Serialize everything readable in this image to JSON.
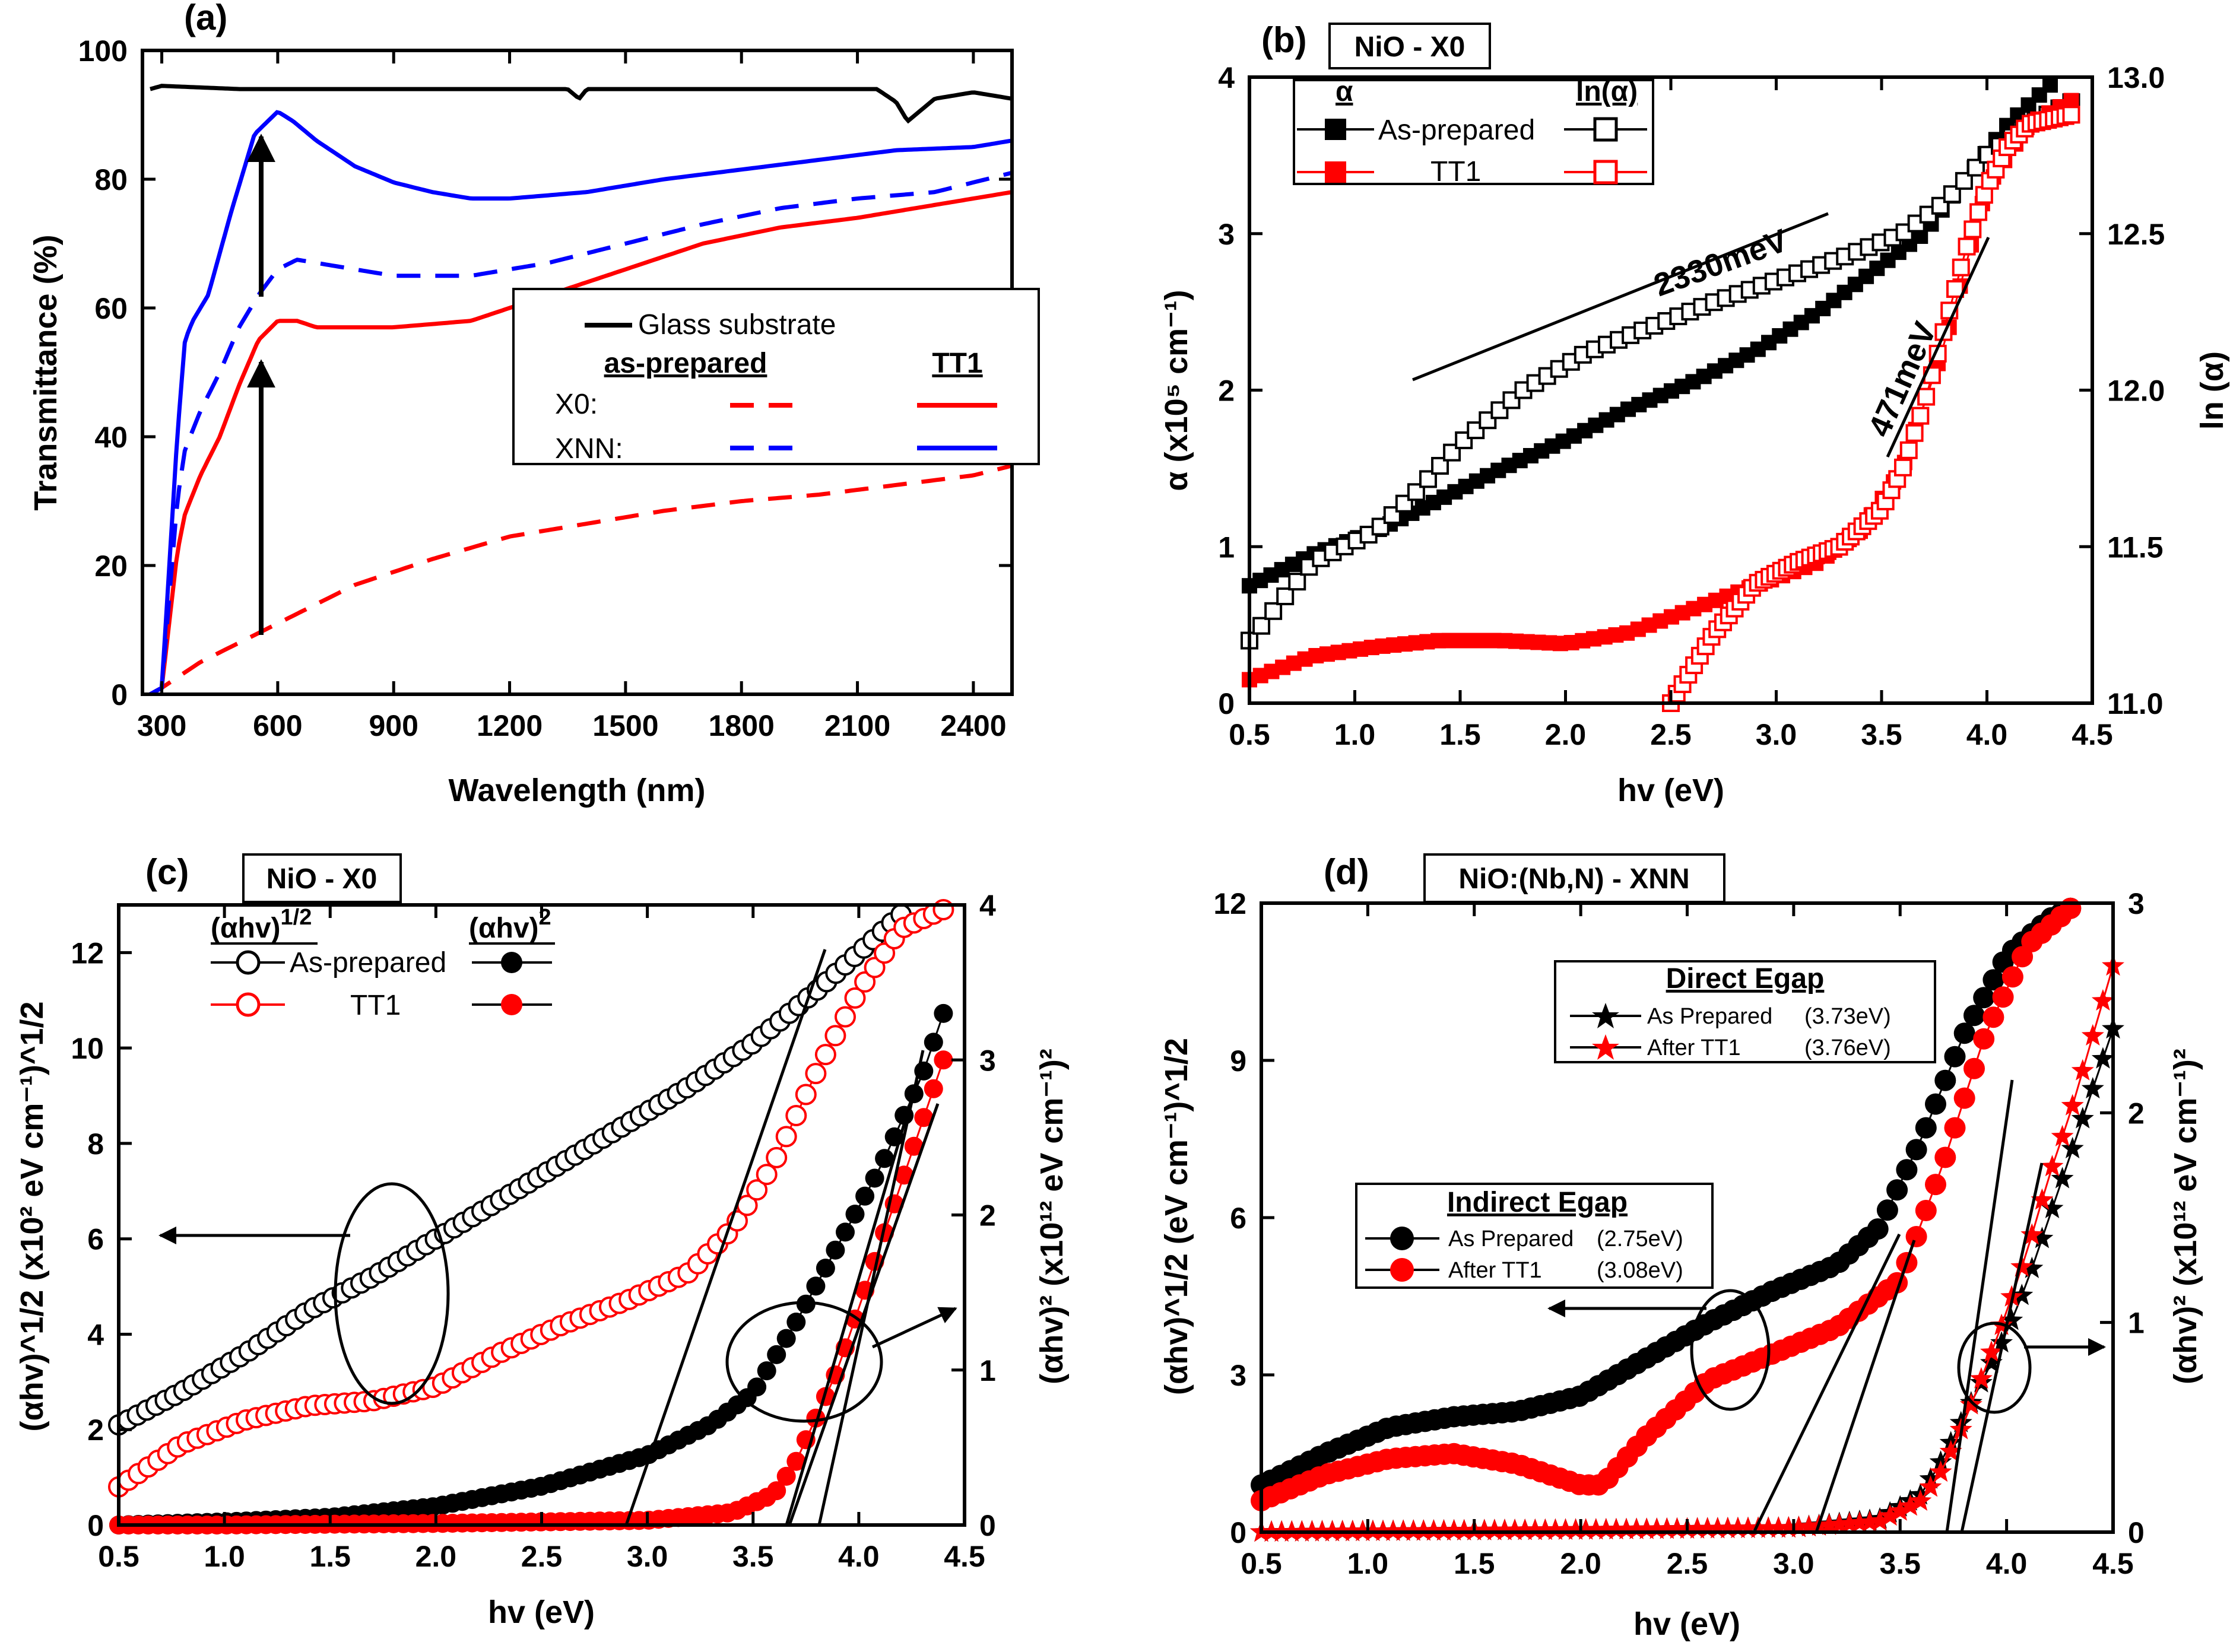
{
  "colors": {
    "black": "#000000",
    "red": "#ff0000",
    "blue": "#0000ff"
  },
  "chart_data": [
    {
      "panel": "(a)",
      "type": "line",
      "xlabel": "Wavelength (nm)",
      "ylabel": "Transmittance  (%)",
      "xlim": [
        250,
        2500
      ],
      "ylim": [
        0,
        100
      ],
      "xticks": [
        "300",
        "600",
        "900",
        "1200",
        "1500",
        "1800",
        "2100",
        "2400"
      ],
      "yticks": [
        "0",
        "20",
        "40",
        "60",
        "80",
        "100"
      ],
      "legend": {
        "glass": "Glass substrate",
        "col_as": "as-prepared",
        "col_tt": "TT1",
        "row_x0": "X0:",
        "row_xnn": "XNN:"
      },
      "series": [
        {
          "name": "Glass substrate",
          "color": "#000000",
          "dash": false,
          "x": [
            270,
            300,
            500,
            1000,
            1350,
            1380,
            1400,
            1500,
            2000,
            2150,
            2200,
            2230,
            2300,
            2400,
            2500
          ],
          "y": [
            94,
            94.5,
            94,
            94,
            94,
            92.5,
            94,
            94,
            94,
            94,
            92,
            89,
            92.5,
            93.5,
            92.5
          ]
        },
        {
          "name": "X0 as-prepared",
          "color": "#ff0000",
          "dash": true,
          "x": [
            270,
            300,
            400,
            600,
            800,
            1000,
            1200,
            1400,
            1600,
            1800,
            2000,
            2200,
            2400,
            2500
          ],
          "y": [
            0,
            1,
            5,
            11,
            17,
            21,
            24.5,
            26.5,
            28.5,
            30,
            31,
            32.5,
            34,
            35.5
          ]
        },
        {
          "name": "X0 TT1",
          "color": "#ff0000",
          "dash": false,
          "x": [
            270,
            300,
            340,
            360,
            400,
            450,
            500,
            550,
            600,
            650,
            700,
            900,
            1100,
            1300,
            1500,
            1700,
            1900,
            2100,
            2300,
            2500
          ],
          "y": [
            0,
            1,
            22,
            28,
            34,
            40,
            48,
            55,
            58,
            58,
            57,
            57,
            58,
            62,
            66,
            70,
            72.5,
            74,
            76,
            78
          ]
        },
        {
          "name": "XNN as-prepared",
          "color": "#0000ff",
          "dash": true,
          "x": [
            270,
            300,
            340,
            360,
            400,
            450,
            500,
            550,
            600,
            650,
            700,
            900,
            1100,
            1300,
            1500,
            1700,
            1900,
            2100,
            2300,
            2500
          ],
          "y": [
            0,
            1,
            30,
            38,
            44,
            50,
            57,
            62,
            66,
            67.5,
            67,
            65,
            65,
            67,
            70,
            73,
            75.5,
            77,
            78,
            81
          ]
        },
        {
          "name": "XNN TT1",
          "color": "#0000ff",
          "dash": false,
          "x": [
            270,
            300,
            340,
            360,
            380,
            420,
            480,
            540,
            600,
            640,
            700,
            800,
            900,
            1000,
            1100,
            1200,
            1400,
            1600,
            1800,
            2000,
            2200,
            2400,
            2500
          ],
          "y": [
            0,
            1,
            40,
            55,
            58,
            62,
            75,
            87,
            90.5,
            89,
            86,
            82,
            79.5,
            78,
            77,
            77,
            78,
            80,
            81.5,
            83,
            84.5,
            85,
            86
          ]
        }
      ],
      "annotations": [
        "arrow 550nm 10%→55%",
        "arrow 550nm 62%→88%"
      ]
    },
    {
      "panel": "(b)",
      "type": "scatter",
      "title": "NiO - X0",
      "xlabel": "hv  (eV)",
      "ylabel": "α (x10⁵ cm⁻¹)",
      "ylabel_right": "ln (α)",
      "xlim": [
        0.5,
        4.5
      ],
      "ylim": [
        0,
        4
      ],
      "ylim_right": [
        11.0,
        13.0
      ],
      "xticks": [
        "0.5",
        "1.0",
        "1.5",
        "2.0",
        "2.5",
        "3.0",
        "3.5",
        "4.0",
        "4.5"
      ],
      "yticks": [
        "0",
        "1",
        "2",
        "3",
        "4"
      ],
      "yticks_right": [
        "11.0",
        "11.5",
        "12.0",
        "12.5",
        "13.0"
      ],
      "legend": {
        "head_alpha": "α",
        "head_ln": "ln(α)",
        "row1": "As-prepared",
        "row2": "TT1"
      },
      "annotations": [
        "2330meV",
        "471meV"
      ],
      "series": [
        {
          "name": "α As-prepared",
          "color": "#000000",
          "filled": true,
          "axis": "left",
          "x": [
            0.5,
            0.8,
            1.1,
            1.4,
            1.7,
            2.0,
            2.3,
            2.6,
            2.9,
            3.2,
            3.5,
            3.7,
            3.9,
            4.1,
            4.3
          ],
          "y": [
            0.75,
            0.95,
            1.1,
            1.3,
            1.5,
            1.68,
            1.88,
            2.05,
            2.25,
            2.5,
            2.8,
            3.0,
            3.35,
            3.7,
            3.95
          ]
        },
        {
          "name": "ln(α) As-prepared",
          "color": "#000000",
          "filled": false,
          "axis": "right",
          "x": [
            0.5,
            0.8,
            1.1,
            1.3,
            1.5,
            1.8,
            2.1,
            2.4,
            2.7,
            3.0,
            3.3,
            3.6,
            3.8,
            4.0,
            4.2,
            4.4
          ],
          "y": [
            11.2,
            11.45,
            11.55,
            11.68,
            11.83,
            12.0,
            12.12,
            12.2,
            12.28,
            12.35,
            12.42,
            12.5,
            12.6,
            12.75,
            12.85,
            12.92
          ]
        },
        {
          "name": "α TT1",
          "color": "#ff0000",
          "filled": true,
          "axis": "left",
          "x": [
            0.5,
            0.8,
            1.1,
            1.4,
            1.7,
            2.0,
            2.3,
            2.6,
            2.9,
            3.2,
            3.4,
            3.6,
            3.7,
            3.8,
            3.9,
            4.0,
            4.2,
            4.4
          ],
          "y": [
            0.15,
            0.3,
            0.36,
            0.4,
            0.4,
            0.38,
            0.45,
            0.6,
            0.75,
            0.9,
            1.1,
            1.5,
            1.9,
            2.3,
            2.8,
            3.3,
            3.7,
            3.85
          ]
        },
        {
          "name": "ln(α) TT1",
          "color": "#ff0000",
          "filled": false,
          "axis": "right",
          "x": [
            2.5,
            2.7,
            2.9,
            3.1,
            3.3,
            3.5,
            3.6,
            3.7,
            3.8,
            3.9,
            4.0,
            4.1,
            4.2,
            4.4
          ],
          "y": [
            11.0,
            11.22,
            11.38,
            11.45,
            11.5,
            11.62,
            11.75,
            11.95,
            12.2,
            12.45,
            12.65,
            12.78,
            12.85,
            12.88
          ]
        }
      ]
    },
    {
      "panel": "(c)",
      "type": "scatter",
      "title": "NiO - X0",
      "xlabel": "hv  (eV)",
      "ylabel": "(αhv)^1/2 (x10² eV cm⁻¹)^1/2",
      "ylabel_right": "(αhv)² (x10¹² eV cm⁻¹)²",
      "xlim": [
        0.5,
        4.5
      ],
      "ylim": [
        0,
        13
      ],
      "ylim_right": [
        0,
        4
      ],
      "xticks": [
        "0.5",
        "1.0",
        "1.5",
        "2.0",
        "2.5",
        "3.0",
        "3.5",
        "4.0",
        "4.5"
      ],
      "yticks": [
        "0",
        "2",
        "4",
        "6",
        "8",
        "10",
        "12"
      ],
      "yticks_right": [
        "0",
        "1",
        "2",
        "3",
        "4"
      ],
      "legend": {
        "head_sqrt": "(αhv)",
        "head_sqrt_sup": "1/2",
        "head_sq": "(αhv)",
        "head_sq_sup": "2",
        "row1": "As-prepared",
        "row2": "TT1"
      },
      "series": [
        {
          "name": "(αhv)^1/2 As-prepared",
          "color": "#000000",
          "filled": false,
          "axis": "left",
          "x": [
            0.5,
            0.8,
            1.1,
            1.4,
            1.7,
            2.0,
            2.3,
            2.6,
            2.9,
            3.2,
            3.5,
            3.8,
            4.0,
            4.2
          ],
          "y": [
            2.1,
            2.8,
            3.6,
            4.5,
            5.2,
            6.0,
            6.8,
            7.6,
            8.4,
            9.2,
            10.1,
            11.2,
            12.0,
            12.8
          ]
        },
        {
          "name": "(αhv)^1/2 TT1",
          "color": "#ff0000",
          "filled": false,
          "axis": "left",
          "x": [
            0.5,
            0.8,
            1.1,
            1.4,
            1.7,
            2.0,
            2.3,
            2.6,
            2.9,
            3.2,
            3.4,
            3.6,
            3.8,
            4.0,
            4.2,
            4.4
          ],
          "y": [
            0.8,
            1.7,
            2.2,
            2.5,
            2.6,
            2.9,
            3.6,
            4.2,
            4.7,
            5.3,
            6.2,
            7.6,
            9.5,
            11.2,
            12.5,
            12.9
          ]
        },
        {
          "name": "(αhv)^2 As-prepared",
          "color": "#000000",
          "filled": true,
          "axis": "right",
          "x": [
            0.5,
            1.0,
            1.5,
            2.0,
            2.5,
            3.0,
            3.3,
            3.5,
            3.7,
            3.9,
            4.1,
            4.3,
            4.4
          ],
          "y": [
            0.0,
            0.02,
            0.05,
            0.12,
            0.25,
            0.45,
            0.65,
            0.85,
            1.3,
            1.8,
            2.3,
            2.9,
            3.3
          ]
        },
        {
          "name": "(αhv)^2 TT1",
          "color": "#ff0000",
          "filled": true,
          "axis": "right",
          "x": [
            0.5,
            1.0,
            2.0,
            3.0,
            3.4,
            3.6,
            3.7,
            3.8,
            3.9,
            4.0,
            4.1,
            4.2,
            4.3,
            4.4
          ],
          "y": [
            0.0,
            0.0,
            0.01,
            0.03,
            0.08,
            0.2,
            0.4,
            0.7,
            1.0,
            1.4,
            1.8,
            2.2,
            2.6,
            3.0
          ]
        }
      ]
    },
    {
      "panel": "(d)",
      "type": "scatter",
      "title": "NiO:(Nb,N) - XNN",
      "xlabel": "hv  (eV)",
      "ylabel": "(αhv)^1/2 (eV cm⁻¹)^1/2",
      "ylabel_right": "(αhv)² (x10¹² eV cm⁻¹)²",
      "xlim": [
        0.5,
        4.5
      ],
      "ylim": [
        0,
        12
      ],
      "ylim_right": [
        0,
        3
      ],
      "xticks": [
        "0.5",
        "1.0",
        "1.5",
        "2.0",
        "2.5",
        "3.0",
        "3.5",
        "4.0",
        "4.5"
      ],
      "yticks": [
        "0",
        "3",
        "6",
        "9",
        "12"
      ],
      "yticks_right": [
        "0",
        "1",
        "2",
        "3"
      ],
      "legend_direct": {
        "title": "Direct Egap",
        "row1": "As Prepared",
        "row1_val": "(3.73eV)",
        "row2": "After TT1",
        "row2_val": "(3.76eV)"
      },
      "legend_indirect": {
        "title": "Indirect Egap",
        "row1": "As Prepared",
        "row1_val": "(2.75eV)",
        "row2": "After TT1",
        "row2_val": "(3.08eV)"
      },
      "series": [
        {
          "name": "Indirect As Prepared",
          "color": "#000000",
          "marker": "circle",
          "axis": "left",
          "x": [
            0.5,
            0.8,
            1.1,
            1.4,
            1.7,
            2.0,
            2.3,
            2.6,
            2.9,
            3.2,
            3.4,
            3.6,
            3.8,
            4.0,
            4.2,
            4.3
          ],
          "y": [
            0.9,
            1.5,
            2.0,
            2.2,
            2.3,
            2.6,
            3.3,
            4.0,
            4.6,
            5.1,
            5.8,
            7.5,
            9.5,
            11.0,
            11.7,
            11.9
          ]
        },
        {
          "name": "Indirect After TT1",
          "color": "#ff0000",
          "marker": "circle",
          "axis": "left",
          "x": [
            0.5,
            0.8,
            1.1,
            1.4,
            1.7,
            2.0,
            2.1,
            2.3,
            2.6,
            2.9,
            3.2,
            3.5,
            3.7,
            3.9,
            4.1,
            4.3
          ],
          "y": [
            0.6,
            1.1,
            1.4,
            1.5,
            1.3,
            0.9,
            0.9,
            1.8,
            2.9,
            3.4,
            3.9,
            4.8,
            7.0,
            9.5,
            11.2,
            11.9
          ]
        },
        {
          "name": "Direct As Prepared",
          "color": "#000000",
          "marker": "star",
          "axis": "right",
          "x": [
            0.5,
            2.0,
            3.0,
            3.4,
            3.6,
            3.7,
            3.8,
            3.9,
            4.0,
            4.1,
            4.2,
            4.3,
            4.4,
            4.5
          ],
          "y": [
            0.0,
            0.01,
            0.02,
            0.06,
            0.18,
            0.35,
            0.55,
            0.75,
            0.95,
            1.2,
            1.5,
            1.8,
            2.1,
            2.4
          ]
        },
        {
          "name": "Direct After TT1",
          "color": "#ff0000",
          "marker": "star",
          "axis": "right",
          "x": [
            0.5,
            2.0,
            3.0,
            3.4,
            3.6,
            3.7,
            3.8,
            3.9,
            4.0,
            4.1,
            4.2,
            4.3,
            4.4,
            4.5
          ],
          "y": [
            0.0,
            0.01,
            0.02,
            0.05,
            0.15,
            0.3,
            0.52,
            0.78,
            1.05,
            1.35,
            1.7,
            2.0,
            2.35,
            2.7
          ]
        }
      ]
    }
  ]
}
